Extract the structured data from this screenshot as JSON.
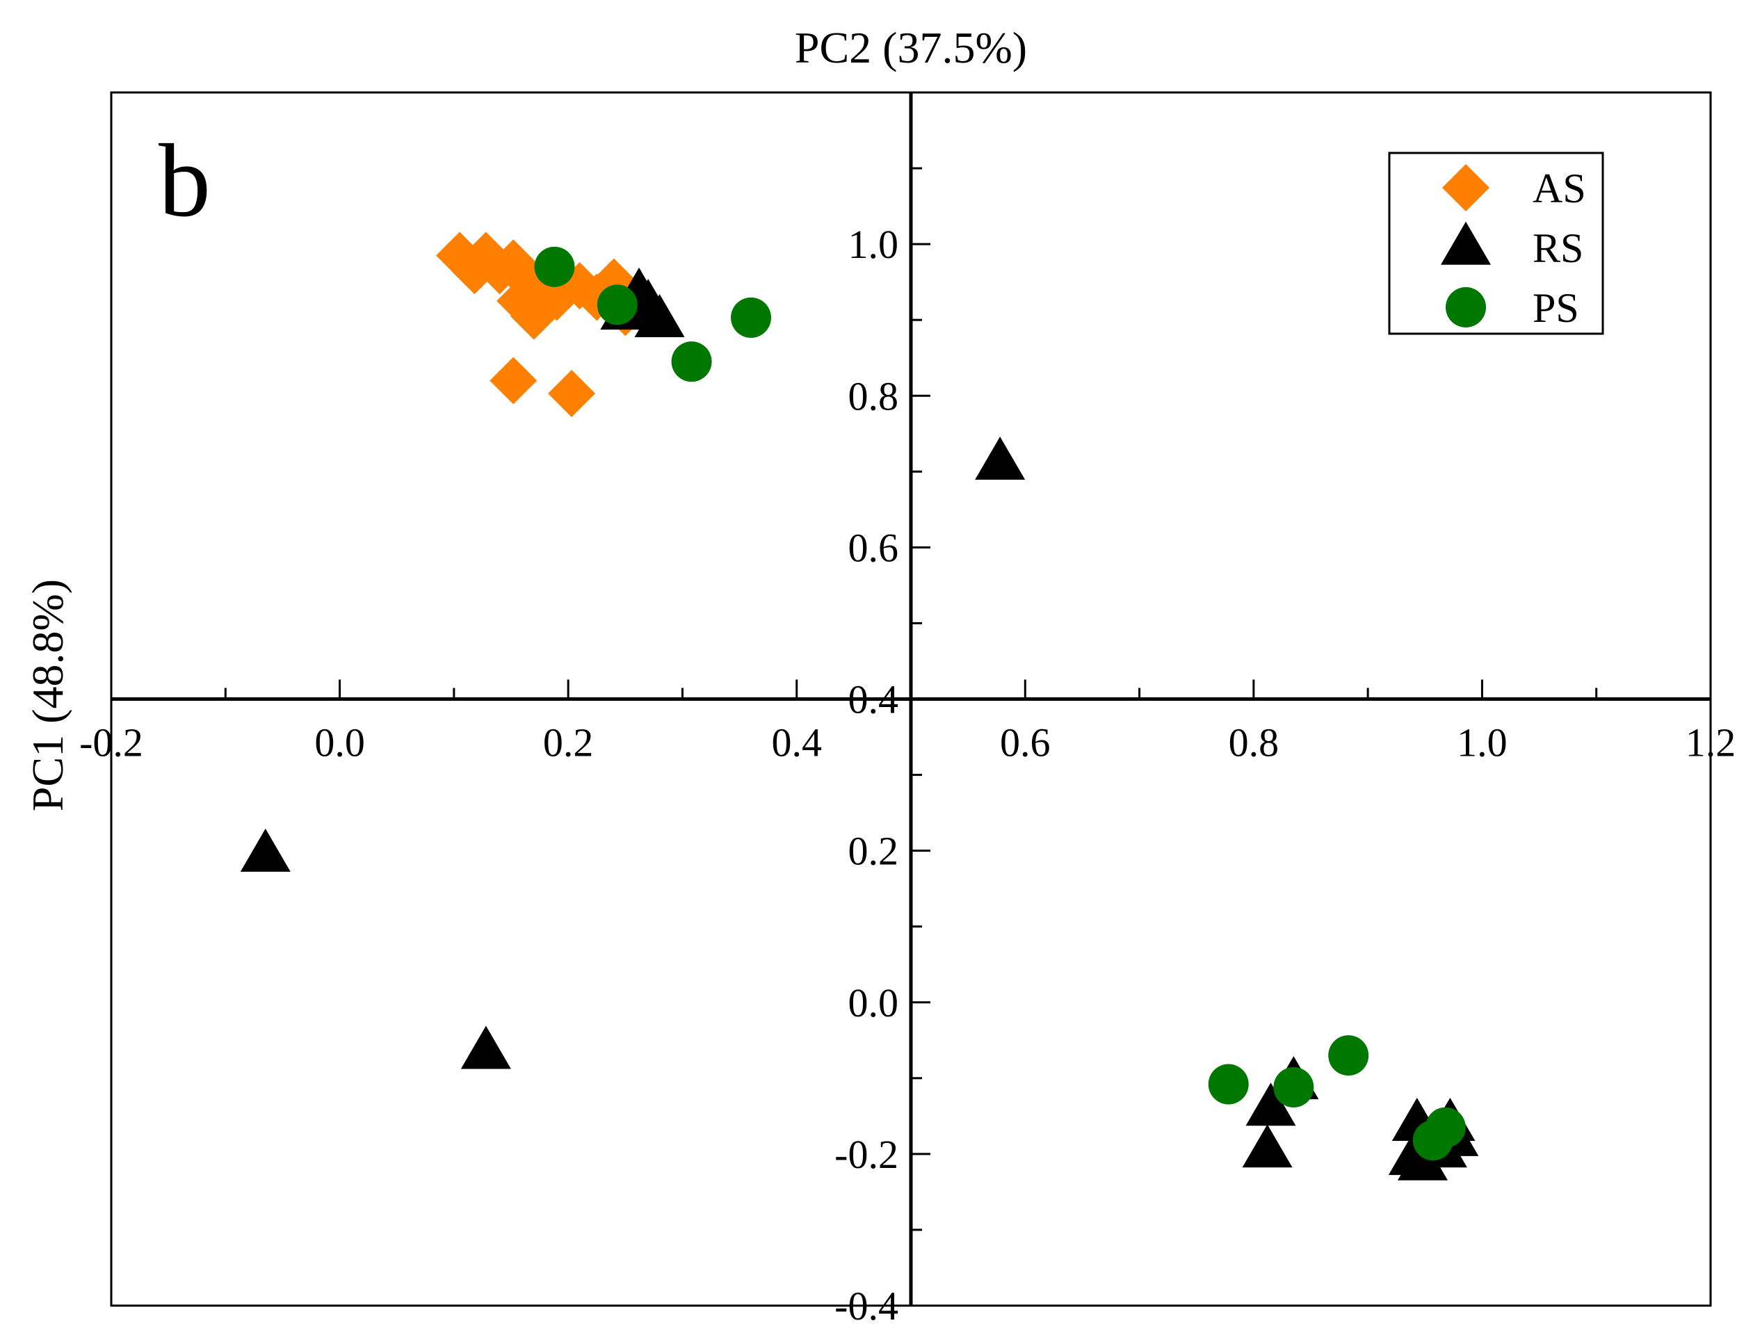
{
  "chart_data": {
    "type": "scatter",
    "panel_label": "b",
    "xlabel": "PC2 (37.5%)",
    "ylabel": "PC1 (48.8%)",
    "xlim": [
      -0.2,
      1.2
    ],
    "ylim": [
      -0.4,
      1.2
    ],
    "x_ticks": [
      -0.2,
      0.0,
      0.2,
      0.4,
      0.6,
      0.8,
      1.0,
      1.2
    ],
    "x_tick_labels": [
      "-0.2",
      "0.0",
      "0.2",
      "0.4",
      "0.6",
      "0.8",
      "1.0",
      "1.2"
    ],
    "y_ticks": [
      -0.4,
      -0.2,
      0.0,
      0.2,
      0.4,
      0.6,
      0.8,
      1.0
    ],
    "y_tick_labels": [
      "-0.4",
      "-0.2",
      "0.0",
      "0.2",
      "0.4",
      "0.6",
      "0.8",
      "1.0"
    ],
    "legend_position": "top-right",
    "series": [
      {
        "name": "AS",
        "marker": "diamond",
        "color": "#ff8000",
        "points": [
          {
            "x": 0.105,
            "y": 0.985
          },
          {
            "x": 0.118,
            "y": 0.965
          },
          {
            "x": 0.128,
            "y": 0.985
          },
          {
            "x": 0.14,
            "y": 0.965
          },
          {
            "x": 0.152,
            "y": 0.975
          },
          {
            "x": 0.162,
            "y": 0.955
          },
          {
            "x": 0.175,
            "y": 0.94
          },
          {
            "x": 0.158,
            "y": 0.925
          },
          {
            "x": 0.19,
            "y": 0.93
          },
          {
            "x": 0.21,
            "y": 0.945
          },
          {
            "x": 0.225,
            "y": 0.93
          },
          {
            "x": 0.24,
            "y": 0.95
          },
          {
            "x": 0.25,
            "y": 0.91
          },
          {
            "x": 0.17,
            "y": 0.905
          },
          {
            "x": 0.152,
            "y": 0.82
          },
          {
            "x": 0.203,
            "y": 0.803
          }
        ]
      },
      {
        "name": "RS",
        "marker": "triangle",
        "color": "#000000",
        "points": [
          {
            "x": 0.262,
            "y": 0.935
          },
          {
            "x": 0.27,
            "y": 0.92
          },
          {
            "x": 0.28,
            "y": 0.9
          },
          {
            "x": 0.25,
            "y": 0.91
          },
          {
            "x": 0.578,
            "y": 0.712
          },
          {
            "x": -0.065,
            "y": 0.195
          },
          {
            "x": 0.128,
            "y": -0.065
          },
          {
            "x": 0.815,
            "y": -0.14
          },
          {
            "x": 0.835,
            "y": -0.105
          },
          {
            "x": 0.812,
            "y": -0.195
          },
          {
            "x": 0.943,
            "y": -0.16
          },
          {
            "x": 0.96,
            "y": -0.175
          },
          {
            "x": 0.972,
            "y": -0.16
          },
          {
            "x": 0.975,
            "y": -0.18
          },
          {
            "x": 0.952,
            "y": -0.19
          },
          {
            "x": 0.965,
            "y": -0.195
          },
          {
            "x": 0.94,
            "y": -0.205
          },
          {
            "x": 0.948,
            "y": -0.212
          }
        ]
      },
      {
        "name": "PS",
        "marker": "circle",
        "color": "#007800",
        "points": [
          {
            "x": 0.188,
            "y": 0.97
          },
          {
            "x": 0.243,
            "y": 0.92
          },
          {
            "x": 0.36,
            "y": 0.903
          },
          {
            "x": 0.308,
            "y": 0.845
          },
          {
            "x": 0.778,
            "y": -0.108
          },
          {
            "x": 0.835,
            "y": -0.112
          },
          {
            "x": 0.883,
            "y": -0.07
          },
          {
            "x": 0.968,
            "y": -0.165
          },
          {
            "x": 0.957,
            "y": -0.182
          }
        ]
      }
    ]
  }
}
